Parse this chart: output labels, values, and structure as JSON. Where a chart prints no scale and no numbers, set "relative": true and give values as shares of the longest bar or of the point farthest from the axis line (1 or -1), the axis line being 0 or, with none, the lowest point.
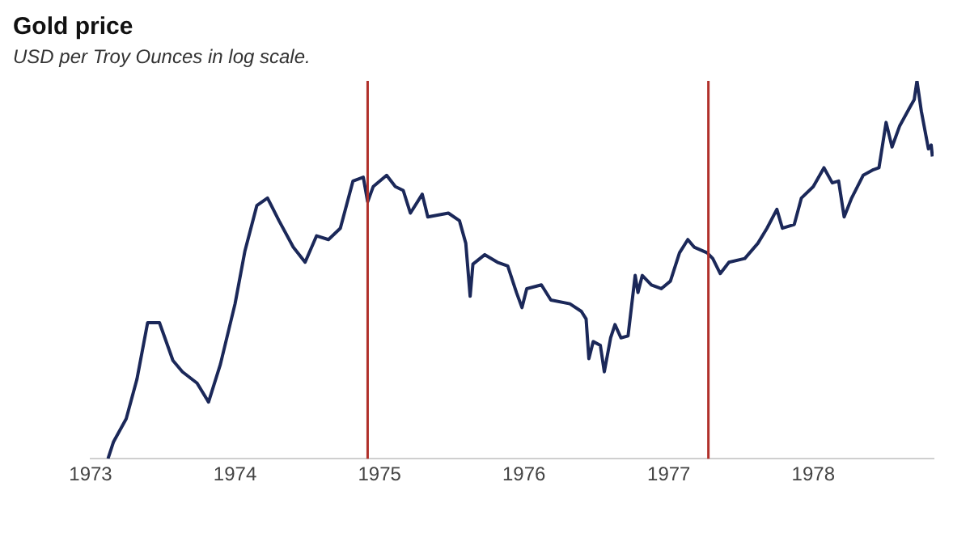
{
  "chart_data": {
    "type": "line",
    "title": "Gold price",
    "subtitle": "USD per Troy Ounces in log scale.",
    "relative": true,
    "marker": "none",
    "line_style": "solid",
    "legend": false,
    "xlim": [
      "1973-01-01",
      "1978-11-01"
    ],
    "xticks": [
      {
        "value": "1973-01-01",
        "label": "1973"
      },
      {
        "value": "1974-01-01",
        "label": "1974"
      },
      {
        "value": "1975-01-01",
        "label": "1975"
      },
      {
        "value": "1976-01-01",
        "label": "1976"
      },
      {
        "value": "1977-01-01",
        "label": "1977"
      },
      {
        "value": "1978-01-01",
        "label": "1978"
      }
    ],
    "ref_lines": [
      {
        "axis": "x",
        "value": "1974-12-02",
        "color": "#b0302a"
      },
      {
        "axis": "x",
        "value": "1977-04-11",
        "color": "#b0302a"
      }
    ],
    "x": [
      "1973-02-14",
      "1973-02-28",
      "1973-04-01",
      "1973-04-28",
      "1973-05-25",
      "1973-06-24",
      "1973-07-28",
      "1973-08-21",
      "1973-09-27",
      "1973-10-26",
      "1973-11-25",
      "1974-01-01",
      "1974-01-26",
      "1974-02-25",
      "1974-03-24",
      "1974-04-22",
      "1974-05-28",
      "1974-06-27",
      "1974-07-26",
      "1974-08-25",
      "1974-09-24",
      "1974-10-26",
      "1974-11-21",
      "1974-12-02",
      "1974-12-16",
      "1975-01-19",
      "1975-02-10",
      "1975-03-02",
      "1975-03-20",
      "1975-04-19",
      "1975-05-03",
      "1975-06-24",
      "1975-07-22",
      "1975-08-07",
      "1975-08-18",
      "1975-08-25",
      "1975-09-24",
      "1975-10-26",
      "1975-11-21",
      "1975-12-13",
      "1975-12-27",
      "1976-01-08",
      "1976-02-14",
      "1976-03-09",
      "1976-04-26",
      "1976-05-25",
      "1976-06-06",
      "1976-06-13",
      "1976-06-24",
      "1976-07-12",
      "1976-07-22",
      "1976-08-07",
      "1976-08-18",
      "1976-09-02",
      "1976-09-20",
      "1976-10-08",
      "1976-10-15",
      "1976-10-26",
      "1976-11-18",
      "1976-12-13",
      "1977-01-05",
      "1977-01-28",
      "1977-02-18",
      "1977-03-06",
      "1977-04-08",
      "1977-04-22",
      "1977-05-11",
      "1977-06-02",
      "1977-07-12",
      "1977-08-14",
      "1977-09-06",
      "1977-10-01",
      "1977-10-15",
      "1977-11-14",
      "1977-12-02",
      "1978-01-01",
      "1978-01-28",
      "1978-02-18",
      "1978-03-06",
      "1978-03-20",
      "1978-04-08",
      "1978-05-07",
      "1978-06-02",
      "1978-06-16",
      "1978-07-04",
      "1978-07-19",
      "1978-08-07",
      "1978-09-02",
      "1978-09-13",
      "1978-09-20",
      "1978-10-01",
      "1978-10-19",
      "1978-10-26",
      "1978-10-29"
    ],
    "series": [
      {
        "color": "#1b2859",
        "values": [
          0,
          0.045,
          0.106,
          0.21,
          0.36,
          0.36,
          0.26,
          0.23,
          0.2,
          0.15,
          0.25,
          0.41,
          0.55,
          0.67,
          0.69,
          0.63,
          0.56,
          0.52,
          0.59,
          0.58,
          0.61,
          0.735,
          0.745,
          0.68,
          0.72,
          0.75,
          0.72,
          0.71,
          0.65,
          0.7,
          0.64,
          0.65,
          0.63,
          0.57,
          0.43,
          0.515,
          0.54,
          0.52,
          0.51,
          0.44,
          0.4,
          0.45,
          0.46,
          0.42,
          0.41,
          0.39,
          0.37,
          0.265,
          0.31,
          0.3,
          0.23,
          0.32,
          0.355,
          0.32,
          0.325,
          0.485,
          0.44,
          0.485,
          0.46,
          0.45,
          0.47,
          0.545,
          0.58,
          0.56,
          0.545,
          0.53,
          0.49,
          0.52,
          0.53,
          0.57,
          0.61,
          0.66,
          0.61,
          0.62,
          0.69,
          0.72,
          0.77,
          0.73,
          0.735,
          0.64,
          0.69,
          0.75,
          0.765,
          0.77,
          0.89,
          0.825,
          0.88,
          0.93,
          0.95,
          1,
          0.92,
          0.82,
          0.83,
          0.8
        ]
      }
    ]
  }
}
